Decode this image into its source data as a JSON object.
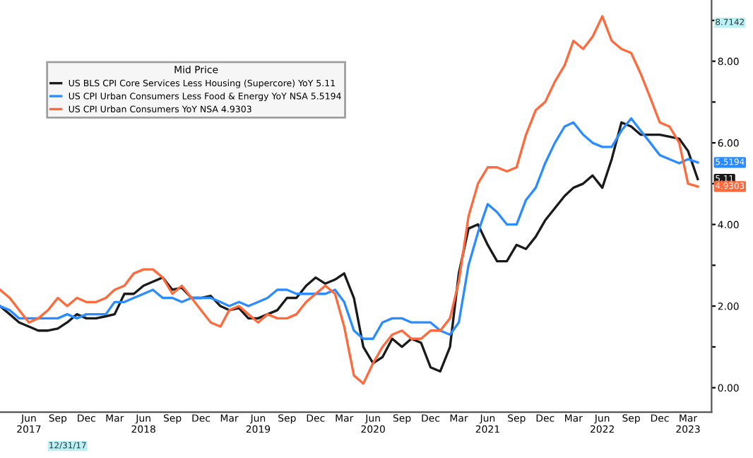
{
  "chart_data": {
    "type": "line",
    "legend_title": "Mid Price",
    "x": [
      "2017-03",
      "2017-04",
      "2017-05",
      "2017-06",
      "2017-07",
      "2017-08",
      "2017-09",
      "2017-10",
      "2017-11",
      "2017-12",
      "2018-01",
      "2018-02",
      "2018-03",
      "2018-04",
      "2018-05",
      "2018-06",
      "2018-07",
      "2018-08",
      "2018-09",
      "2018-10",
      "2018-11",
      "2018-12",
      "2019-01",
      "2019-02",
      "2019-03",
      "2019-04",
      "2019-05",
      "2019-06",
      "2019-07",
      "2019-08",
      "2019-09",
      "2019-10",
      "2019-11",
      "2019-12",
      "2020-01",
      "2020-02",
      "2020-03",
      "2020-04",
      "2020-05",
      "2020-06",
      "2020-07",
      "2020-08",
      "2020-09",
      "2020-10",
      "2020-11",
      "2020-12",
      "2021-01",
      "2021-02",
      "2021-03",
      "2021-04",
      "2021-05",
      "2021-06",
      "2021-07",
      "2021-08",
      "2021-09",
      "2021-10",
      "2021-11",
      "2021-12",
      "2022-01",
      "2022-02",
      "2022-03",
      "2022-04",
      "2022-05",
      "2022-06",
      "2022-07",
      "2022-08",
      "2022-09",
      "2022-10",
      "2022-11",
      "2022-12",
      "2023-01",
      "2023-02",
      "2023-03",
      "2023-04"
    ],
    "series": [
      {
        "name": "US BLS CPI Core Services Less Housing (Supercore) YoY 5.11",
        "color": "#1a1a1a",
        "values": [
          2.0,
          1.8,
          1.6,
          1.5,
          1.4,
          1.4,
          1.45,
          1.6,
          1.8,
          1.7,
          1.7,
          1.75,
          1.8,
          2.3,
          2.3,
          2.5,
          2.6,
          2.7,
          2.4,
          2.45,
          2.2,
          2.2,
          2.25,
          2.0,
          1.9,
          1.95,
          1.7,
          1.7,
          1.8,
          1.9,
          2.2,
          2.2,
          2.5,
          2.7,
          2.55,
          2.65,
          2.8,
          2.2,
          1.0,
          0.6,
          0.75,
          1.2,
          1.0,
          1.2,
          1.1,
          0.5,
          0.4,
          1.0,
          2.8,
          3.9,
          4.0,
          3.5,
          3.1,
          3.1,
          3.5,
          3.4,
          3.7,
          4.1,
          4.4,
          4.7,
          4.9,
          5.0,
          5.2,
          4.9,
          5.6,
          6.5,
          6.4,
          6.2,
          6.2,
          6.2,
          6.15,
          6.1,
          5.8,
          5.11
        ]
      },
      {
        "name": "US CPI Urban Consumers Less Food & Energy YoY NSA 5.5194",
        "color": "#2a8cff",
        "values": [
          2.0,
          1.9,
          1.7,
          1.7,
          1.7,
          1.7,
          1.7,
          1.8,
          1.7,
          1.8,
          1.8,
          1.8,
          2.1,
          2.1,
          2.2,
          2.3,
          2.4,
          2.2,
          2.2,
          2.1,
          2.2,
          2.2,
          2.2,
          2.1,
          2.0,
          2.1,
          2.0,
          2.1,
          2.2,
          2.4,
          2.4,
          2.3,
          2.3,
          2.3,
          2.3,
          2.4,
          2.1,
          1.4,
          1.2,
          1.2,
          1.6,
          1.7,
          1.7,
          1.6,
          1.6,
          1.6,
          1.4,
          1.3,
          1.6,
          3.0,
          3.8,
          4.5,
          4.3,
          4.0,
          4.0,
          4.6,
          4.9,
          5.5,
          6.0,
          6.4,
          6.5,
          6.2,
          6.0,
          5.9,
          5.9,
          6.3,
          6.6,
          6.3,
          6.0,
          5.7,
          5.6,
          5.5,
          5.6,
          5.52
        ]
      },
      {
        "name": "US CPI Urban Consumers YoY NSA 4.9303",
        "color": "#ff6a3d",
        "values": [
          2.4,
          2.2,
          1.9,
          1.6,
          1.7,
          1.9,
          2.2,
          2.0,
          2.2,
          2.1,
          2.1,
          2.2,
          2.4,
          2.5,
          2.8,
          2.9,
          2.9,
          2.7,
          2.3,
          2.5,
          2.2,
          1.9,
          1.6,
          1.5,
          1.9,
          2.0,
          1.8,
          1.6,
          1.8,
          1.7,
          1.7,
          1.8,
          2.1,
          2.3,
          2.5,
          2.3,
          1.5,
          0.3,
          0.1,
          0.6,
          1.0,
          1.3,
          1.4,
          1.2,
          1.2,
          1.4,
          1.4,
          1.7,
          2.6,
          4.2,
          5.0,
          5.4,
          5.4,
          5.3,
          5.4,
          6.2,
          6.8,
          7.0,
          7.5,
          7.9,
          8.5,
          8.3,
          8.6,
          9.1,
          8.5,
          8.3,
          8.2,
          7.7,
          7.1,
          6.5,
          6.4,
          6.0,
          5.0,
          4.93
        ]
      }
    ],
    "xlim": [
      "2017-03",
      "2023-05-15"
    ],
    "xticks": [
      {
        "value": "2017-06",
        "label": "Jun\n2017"
      },
      {
        "value": "2017-09",
        "label": "Sep"
      },
      {
        "value": "2017-12",
        "label": "Dec"
      },
      {
        "value": "2018-03",
        "label": "Mar"
      },
      {
        "value": "2018-06",
        "label": "Jun\n2018"
      },
      {
        "value": "2018-09",
        "label": "Sep"
      },
      {
        "value": "2018-12",
        "label": "Dec"
      },
      {
        "value": "2019-03",
        "label": "Mar"
      },
      {
        "value": "2019-06",
        "label": "Jun\n2019"
      },
      {
        "value": "2019-09",
        "label": "Sep"
      },
      {
        "value": "2019-12",
        "label": "Dec"
      },
      {
        "value": "2020-03",
        "label": "Mar"
      },
      {
        "value": "2020-06",
        "label": "Jun\n2020"
      },
      {
        "value": "2020-09",
        "label": "Sep"
      },
      {
        "value": "2020-12",
        "label": "Dec"
      },
      {
        "value": "2021-03",
        "label": "Mar"
      },
      {
        "value": "2021-06",
        "label": "Jun\n2021"
      },
      {
        "value": "2021-09",
        "label": "Sep"
      },
      {
        "value": "2021-12",
        "label": "Dec"
      },
      {
        "value": "2022-03",
        "label": "Mar"
      },
      {
        "value": "2022-06",
        "label": "Jun\n2022"
      },
      {
        "value": "2022-09",
        "label": "Sep"
      },
      {
        "value": "2022-12",
        "label": "Dec"
      },
      {
        "value": "2023-03",
        "label": "Mar\n2023"
      }
    ],
    "ylim": [
      -0.6,
      9.5
    ],
    "yticks": [
      {
        "value": 0,
        "label": "0.00"
      },
      {
        "value": 1,
        "label": null
      },
      {
        "value": 2,
        "label": "2.00"
      },
      {
        "value": 3,
        "label": null
      },
      {
        "value": 4,
        "label": "4.00"
      },
      {
        "value": 5,
        "label": null
      },
      {
        "value": 6,
        "label": "6.00"
      },
      {
        "value": 7,
        "label": null
      },
      {
        "value": 8,
        "label": "8.00"
      },
      {
        "value": 9,
        "label": null
      }
    ],
    "annotations": [
      "8.7142",
      {
        "text": "5.5194",
        "x": "2023-04",
        "y": 5.5194
      },
      {
        "text": "5.11",
        "x": "2023-04",
        "y": 5.11
      },
      {
        "text": "4.9303",
        "x": "2023-04",
        "y": 4.9303
      },
      "12/31/17"
    ],
    "legend": "top left",
    "grid": false,
    "marker": "none",
    "line_style": "solid"
  }
}
